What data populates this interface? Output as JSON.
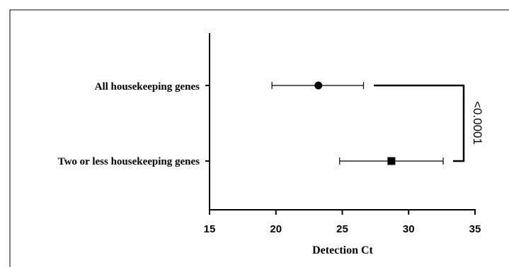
{
  "chart_data": {
    "type": "scatter",
    "orientation": "horizontal",
    "xlabel": "Detection Ct",
    "xlim": [
      15,
      35
    ],
    "xticks": [
      15,
      20,
      25,
      30,
      35
    ],
    "grid": false,
    "categories": [
      "All housekeeping genes",
      "Two or less housekeeping genes"
    ],
    "series": [
      {
        "category": "All housekeeping genes",
        "marker": "circle",
        "value": 23.2,
        "error_low": 19.7,
        "error_high": 26.6
      },
      {
        "category": "Two or less housekeeping genes",
        "marker": "square",
        "value": 28.7,
        "error_low": 24.8,
        "error_high": 32.6
      }
    ],
    "annotation": {
      "text": "<0.0001",
      "type": "significance-bracket",
      "between": [
        "All housekeeping genes",
        "Two or less housekeeping genes"
      ]
    }
  }
}
